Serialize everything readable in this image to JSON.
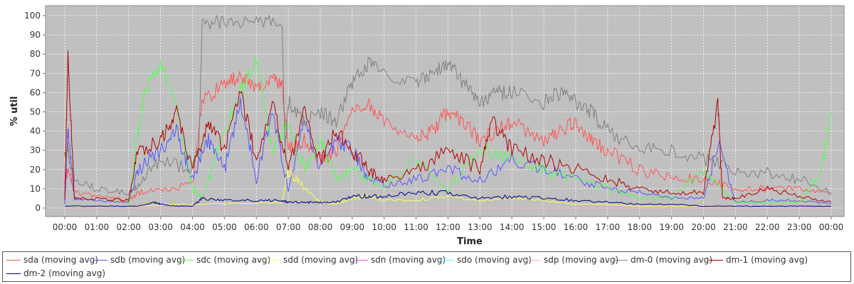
{
  "chart_data": {
    "type": "line",
    "title": "",
    "xlabel": "Time",
    "ylabel": "% util",
    "ylim": [
      0,
      100
    ],
    "yticks": [
      0,
      10,
      20,
      30,
      40,
      50,
      60,
      70,
      80,
      90,
      100
    ],
    "xlim": [
      0,
      24
    ],
    "xticks": [
      "00:00",
      "01:00",
      "02:00",
      "03:00",
      "04:00",
      "05:00",
      "06:00",
      "07:00",
      "08:00",
      "09:00",
      "10:00",
      "11:00",
      "12:00",
      "13:00",
      "14:00",
      "15:00",
      "16:00",
      "17:00",
      "18:00",
      "19:00",
      "20:00",
      "21:00",
      "22:00",
      "23:00",
      "00:00"
    ],
    "grid": true,
    "legend_position": "bottom",
    "plot_background": "#c0c0c0",
    "series": [
      {
        "name": "sda (moving avg)",
        "color": "#ff5555",
        "x": [
          0,
          0.1,
          0.3,
          1,
          2,
          2.3,
          3,
          4,
          4.3,
          5,
          5.5,
          6,
          6.5,
          6.8,
          7,
          7.5,
          8,
          8.5,
          9,
          9.5,
          10,
          11,
          11.5,
          12,
          12.5,
          13,
          13.5,
          14,
          15,
          15.5,
          16,
          16.5,
          17,
          18,
          19,
          20,
          21,
          22,
          23,
          24
        ],
        "y": [
          15,
          20,
          8,
          6,
          4,
          8,
          10,
          12,
          55,
          65,
          68,
          62,
          66,
          65,
          30,
          35,
          25,
          30,
          50,
          55,
          45,
          35,
          40,
          50,
          45,
          35,
          40,
          45,
          35,
          40,
          45,
          35,
          30,
          20,
          15,
          15,
          10,
          10,
          10,
          7
        ]
      },
      {
        "name": "sdb (moving avg)",
        "color": "#5555ff",
        "x": [
          0,
          0.1,
          0.3,
          1,
          2,
          2.3,
          3,
          3.5,
          4,
          4.5,
          5,
          5.5,
          6,
          6.5,
          7,
          7.5,
          8,
          8.5,
          9,
          9.5,
          10,
          11,
          12,
          13,
          14,
          15,
          16,
          17,
          18,
          19,
          20,
          20.5,
          21,
          22,
          23,
          24
        ],
        "y": [
          2,
          40,
          5,
          4,
          3,
          20,
          30,
          40,
          15,
          35,
          20,
          55,
          15,
          50,
          10,
          45,
          20,
          35,
          30,
          15,
          12,
          15,
          20,
          15,
          25,
          20,
          15,
          10,
          8,
          5,
          5,
          35,
          3,
          4,
          4,
          2
        ]
      },
      {
        "name": "sdc (moving avg)",
        "color": "#55ff55",
        "x": [
          0,
          1,
          2,
          2.3,
          2.5,
          3,
          3.5,
          4,
          4.3,
          5,
          5.5,
          6,
          6.5,
          7,
          7.5,
          8,
          8.5,
          9,
          10,
          11,
          12,
          13,
          14,
          15,
          16,
          17,
          18,
          19,
          20,
          21,
          22,
          23,
          23.7,
          24
        ],
        "y": [
          1,
          1,
          1,
          40,
          60,
          75,
          55,
          10,
          5,
          40,
          60,
          78,
          30,
          45,
          20,
          35,
          15,
          20,
          10,
          25,
          10,
          30,
          25,
          20,
          15,
          10,
          5,
          5,
          20,
          3,
          3,
          3,
          20,
          50
        ]
      },
      {
        "name": "sdd (moving avg)",
        "color": "#ffff55",
        "x": [
          0,
          2,
          4,
          6.8,
          7,
          7.5,
          8,
          8.5,
          9,
          9.5,
          10,
          11,
          12,
          13,
          14,
          15,
          16,
          17,
          18,
          19,
          20,
          21,
          22,
          23,
          24
        ],
        "y": [
          1,
          1,
          2,
          3,
          20,
          10,
          3,
          2,
          5,
          6,
          4,
          4,
          6,
          4,
          5,
          4,
          2,
          2,
          1,
          1,
          1,
          1,
          1,
          1,
          1
        ]
      },
      {
        "name": "sdn (moving avg)",
        "color": "#ff55ff",
        "x": [
          0,
          24
        ],
        "y": [
          0,
          0
        ]
      },
      {
        "name": "sdo (moving avg)",
        "color": "#55ffff",
        "x": [
          0,
          24
        ],
        "y": [
          0,
          0
        ]
      },
      {
        "name": "sdp (moving avg)",
        "color": "#ffafaf",
        "x": [
          0,
          24
        ],
        "y": [
          0,
          0
        ]
      },
      {
        "name": "dm-0 (moving avg)",
        "color": "#808080",
        "x": [
          0,
          0.1,
          0.3,
          1,
          2,
          2.3,
          3,
          4,
          4.2,
          4.3,
          5,
          6,
          6.8,
          6.9,
          7,
          7.5,
          8,
          8.5,
          9,
          9.5,
          10,
          11,
          11.5,
          12,
          12.5,
          13,
          13.5,
          14,
          15,
          15.5,
          16,
          16.5,
          17,
          18,
          19,
          20,
          21,
          22,
          23,
          24
        ],
        "y": [
          25,
          30,
          15,
          10,
          8,
          12,
          25,
          20,
          30,
          96,
          97,
          97,
          97,
          30,
          55,
          45,
          50,
          45,
          65,
          75,
          70,
          65,
          70,
          75,
          65,
          55,
          60,
          60,
          55,
          60,
          55,
          50,
          40,
          30,
          30,
          25,
          20,
          18,
          15,
          8
        ]
      },
      {
        "name": "dm-1 (moving avg)",
        "color": "#b00000",
        "x": [
          0,
          0.1,
          0.3,
          1,
          2,
          2.3,
          3,
          3.5,
          4,
          4.5,
          5,
          5.5,
          6,
          6.5,
          7,
          7.5,
          8,
          8.5,
          9,
          9.5,
          10,
          11,
          12,
          13,
          13.4,
          14,
          15,
          16,
          17,
          18,
          19,
          20,
          20.45,
          20.6,
          21,
          22,
          23,
          24
        ],
        "y": [
          5,
          80,
          5,
          5,
          4,
          30,
          35,
          50,
          20,
          45,
          30,
          60,
          25,
          55,
          20,
          50,
          25,
          40,
          30,
          20,
          15,
          20,
          30,
          20,
          45,
          30,
          25,
          20,
          15,
          10,
          8,
          8,
          54,
          5,
          5,
          10,
          6,
          3
        ]
      },
      {
        "name": "dm-2 (moving avg)",
        "color": "#000080",
        "x": [
          0,
          1,
          2,
          2.3,
          2.8,
          3,
          3.5,
          4,
          4.3,
          5,
          6,
          6.8,
          7,
          7.5,
          8,
          8.5,
          9,
          9.5,
          10,
          11,
          12,
          13,
          14,
          15,
          16,
          17,
          18,
          19,
          20,
          21,
          22,
          23,
          24
        ],
        "y": [
          1,
          1,
          1,
          1,
          3,
          2,
          1,
          1,
          5,
          4,
          4,
          4,
          3,
          3,
          3,
          3,
          6,
          6,
          6,
          8,
          8,
          5,
          6,
          5,
          4,
          3,
          2,
          2,
          1,
          1,
          1,
          1,
          1
        ]
      }
    ]
  }
}
